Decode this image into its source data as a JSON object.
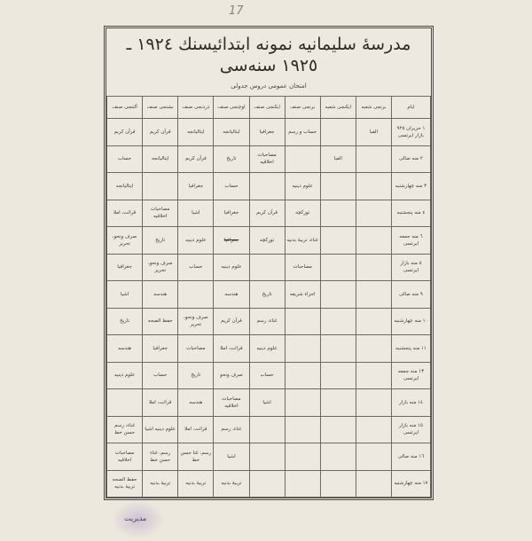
{
  "page_number": "17",
  "title": "مدرسهٔ سلیمانیه نمونه ابتدائیسنك ١٩٢٤ ـ ١٩٢٥ سنه‌سی",
  "subtitle": "امتحان عمومی دروس جدولی",
  "columns": [
    "ایام",
    "برنجی شعبه",
    "ایکنجی شعبه",
    "برنجی صنف",
    "ایکنجی صنف",
    "اوچنجی صنف",
    "دردنجی صنف",
    "بشنجی صنف",
    "آلتنجی صنف"
  ],
  "rows": [
    [
      "١ حزیران ٩٢٥ بازار ایرتسی",
      "الفبا",
      "",
      "حساب و رسم",
      "جغرافیا",
      "ایتالیانجه",
      "ایتالیانجه",
      "قرآن کریم",
      "قرآن کریم"
    ],
    [
      "٢ منه صالی",
      "",
      "الفبا",
      "",
      "مصاحبات اخلاقیه",
      "تاریخ",
      "قرآن کریم",
      "ایتالیانجه",
      "حساب"
    ],
    [
      "٣ منه چهارشنبه",
      "",
      "",
      "علوم دینیه",
      "",
      "حساب",
      "جغرافیا",
      "",
      "ایتالیانجه"
    ],
    [
      "٤ منه پنجشنبه",
      "",
      "",
      "توركچه",
      "قرآن کریم",
      "جغرافیا",
      "اشیا",
      "مصاحبات اخلاقیه",
      "قرائت، املا"
    ],
    [
      "٦ منه جمعه ایرتسی",
      "",
      "",
      "غناء، تربیهٔ بدنیه",
      "توركچه",
      "جغرافیا",
      "علوم دینیه",
      "تاریخ",
      "صرف ونحو، تحریر"
    ],
    [
      "٨ منه بازار ایرتسی",
      "",
      "",
      "مصاحبات",
      "",
      "علوم دینیه",
      "حساب",
      "صرف ونحو، تحریر",
      "جغرافیا"
    ],
    [
      "٩ منه صالی",
      "",
      "",
      "اجزاء شریفه",
      "تاریخ",
      "هندسه",
      "",
      "هندسه",
      "اشیا"
    ],
    [
      "١٠ منه چهارشنبه",
      "",
      "",
      "",
      "غناء، رسم",
      "قرآن کریم",
      "صرف ونحو، تحریر",
      "حفظ الصحه",
      "تاریخ"
    ],
    [
      "١١ منه پنجشنبه",
      "",
      "",
      "",
      "علوم دینیه",
      "قرائت، املا",
      "مصاحبات",
      "جغرافیا",
      "هندسه"
    ],
    [
      "١٣ منه جمعه ایرتسی",
      "",
      "",
      "",
      "حساب",
      "صرف ونحو",
      "تاریخ",
      "حساب",
      "علوم دینیه"
    ],
    [
      "١٤ منه بازار",
      "",
      "",
      "",
      "اشیا",
      "مصاحبات اخلاقیه",
      "هندسه",
      "قرائت، املا",
      ""
    ],
    [
      "١٥ منه بازار ایرتسی",
      "",
      "",
      "",
      "",
      "غناء، رسم",
      "قرائت، املا",
      "علوم دینیه اشیا",
      "غناء، رسم حسن خط"
    ],
    [
      "١٦ منه صالی",
      "",
      "",
      "",
      "",
      "اشیا",
      "رسم، غنا حسن خط",
      "رسم، غناء حسن خط",
      "مصاحبات اخلاقیه"
    ],
    [
      "١٧ منه چهارشنبه",
      "",
      "",
      "",
      "",
      "تربیهٔ بدنیه",
      "تربیهٔ بدنیه",
      "تربیهٔ بدنیه",
      "حفظ الصحه تربیهٔ بدنیه"
    ]
  ],
  "struck_cell": "جغرافیا",
  "stamp_text": "مدیریت"
}
